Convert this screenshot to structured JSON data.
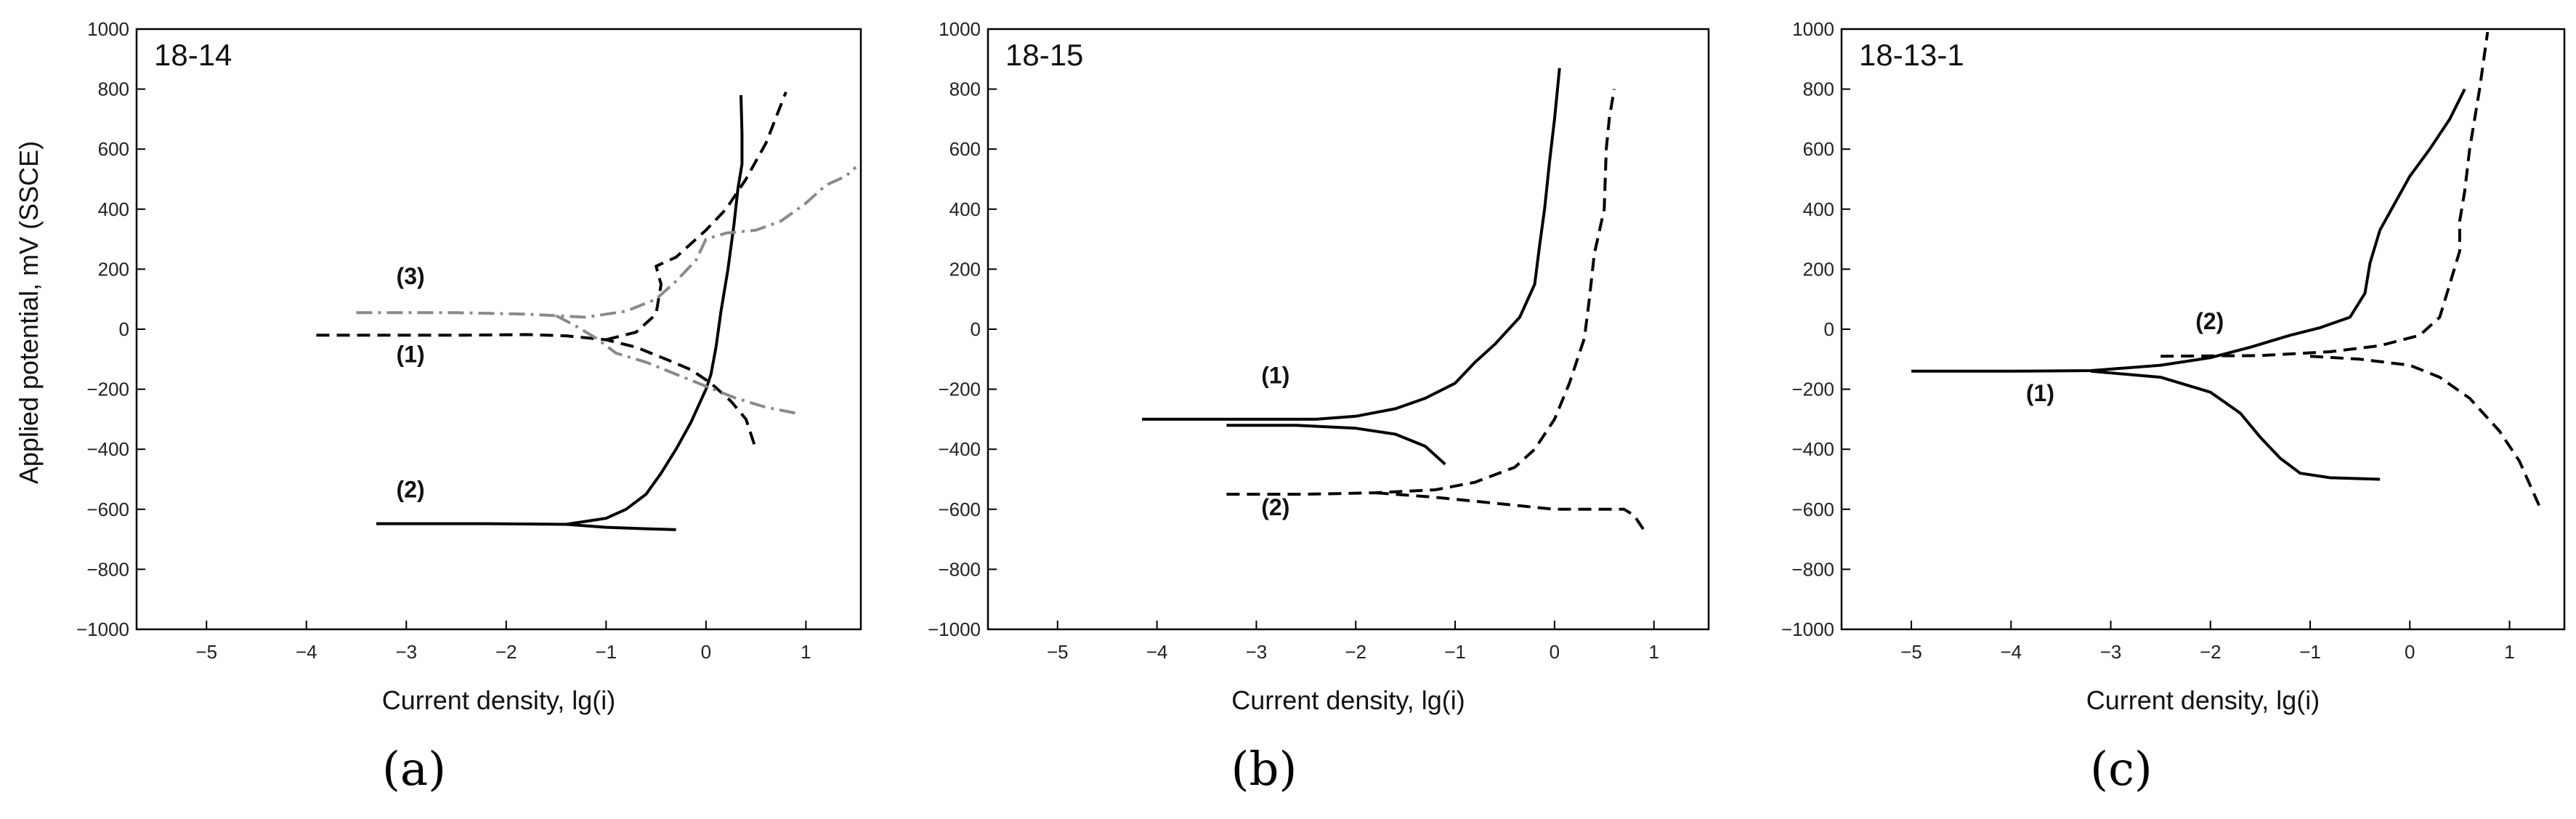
{
  "chart_data": [
    {
      "type": "line",
      "title": "18-14",
      "xlabel": "Current density, lg(i)",
      "ylabel": "Applied potential, mV (SSCE)",
      "xlim": [
        -5.7,
        1.55
      ],
      "ylim": [
        -1000,
        1000
      ],
      "xticks": [
        -5,
        -4,
        -3,
        -2,
        -1,
        0,
        1
      ],
      "yticks": [
        -1000,
        -800,
        -600,
        -400,
        -200,
        0,
        200,
        400,
        600,
        800,
        1000
      ],
      "subcaption": "(a)",
      "labels": [
        {
          "text": "(3)",
          "x": -3.1,
          "y": 150
        },
        {
          "text": "(1)",
          "x": -3.1,
          "y": -110
        },
        {
          "text": "(2)",
          "x": -3.1,
          "y": -560
        }
      ],
      "series": [
        {
          "label": "(1)",
          "style": "dashed",
          "color": "#000000",
          "points": [
            [
              -3.9,
              -20
            ],
            [
              -2.5,
              -20
            ],
            [
              -1.8,
              -18
            ],
            [
              -1.4,
              -22
            ],
            [
              -1.0,
              -35
            ],
            [
              -0.7,
              -60
            ],
            [
              -0.4,
              -100
            ],
            [
              -0.15,
              -135
            ],
            [
              0.05,
              -180
            ],
            [
              0.25,
              -240
            ],
            [
              0.4,
              -300
            ],
            [
              0.5,
              -400
            ]
          ]
        },
        {
          "label": "(1)",
          "style": "dashed",
          "color": "#000000",
          "points": [
            [
              -1.0,
              -35
            ],
            [
              -0.7,
              -10
            ],
            [
              -0.5,
              50
            ],
            [
              -0.45,
              150
            ],
            [
              -0.5,
              210
            ],
            [
              -0.3,
              240
            ],
            [
              0.0,
              330
            ],
            [
              0.2,
              400
            ],
            [
              0.4,
              500
            ],
            [
              0.5,
              560
            ],
            [
              0.6,
              620
            ],
            [
              0.8,
              790
            ]
          ]
        },
        {
          "label": "(2)",
          "style": "solid",
          "color": "#000000",
          "points": [
            [
              -3.3,
              -648
            ],
            [
              -2.2,
              -648
            ],
            [
              -1.4,
              -650
            ],
            [
              -1.0,
              -660
            ],
            [
              -0.6,
              -665
            ],
            [
              -0.3,
              -668
            ]
          ]
        },
        {
          "label": "(2)",
          "style": "solid",
          "color": "#000000",
          "points": [
            [
              -1.4,
              -650
            ],
            [
              -1.0,
              -630
            ],
            [
              -0.8,
              -600
            ],
            [
              -0.6,
              -550
            ],
            [
              -0.45,
              -480
            ],
            [
              -0.3,
              -400
            ],
            [
              -0.15,
              -310
            ],
            [
              0.0,
              -200
            ],
            [
              0.05,
              -150
            ],
            [
              0.1,
              -60
            ],
            [
              0.15,
              60
            ],
            [
              0.22,
              200
            ],
            [
              0.28,
              350
            ],
            [
              0.32,
              470
            ],
            [
              0.36,
              550
            ],
            [
              0.36,
              650
            ],
            [
              0.35,
              780
            ]
          ]
        },
        {
          "label": "(3)",
          "style": "dashdot",
          "color": "#8a8a8a",
          "points": [
            [
              -3.5,
              55
            ],
            [
              -2.5,
              55
            ],
            [
              -1.8,
              50
            ],
            [
              -1.5,
              45
            ],
            [
              -1.2,
              40
            ],
            [
              -0.8,
              60
            ],
            [
              -0.5,
              100
            ],
            [
              -0.3,
              160
            ],
            [
              -0.1,
              230
            ],
            [
              0.0,
              300
            ],
            [
              0.2,
              320
            ],
            [
              0.5,
              330
            ],
            [
              0.75,
              360
            ],
            [
              1.0,
              420
            ],
            [
              1.2,
              480
            ],
            [
              1.4,
              510
            ],
            [
              1.5,
              540
            ]
          ]
        },
        {
          "label": "(3)",
          "style": "dashdot",
          "color": "#8a8a8a",
          "points": [
            [
              -1.5,
              45
            ],
            [
              -1.3,
              10
            ],
            [
              -1.1,
              -30
            ],
            [
              -0.9,
              -80
            ],
            [
              -0.6,
              -110
            ],
            [
              -0.3,
              -150
            ],
            [
              0.0,
              -190
            ],
            [
              0.3,
              -230
            ],
            [
              0.6,
              -260
            ],
            [
              0.9,
              -280
            ]
          ]
        }
      ]
    },
    {
      "type": "line",
      "title": "18-15",
      "xlabel": "Current density, lg(i)",
      "ylabel": "",
      "xlim": [
        -5.7,
        1.55
      ],
      "ylim": [
        -1000,
        1000
      ],
      "xticks": [
        -5,
        -4,
        -3,
        -2,
        -1,
        0,
        1
      ],
      "yticks": [
        -1000,
        -800,
        -600,
        -400,
        -200,
        0,
        200,
        400,
        600,
        800,
        1000
      ],
      "subcaption": "(b)",
      "labels": [
        {
          "text": "(1)",
          "x": -2.95,
          "y": -180
        },
        {
          "text": "(2)",
          "x": -2.95,
          "y": -620
        }
      ],
      "series": [
        {
          "label": "(1)",
          "style": "solid",
          "color": "#000000",
          "points": [
            [
              -4.15,
              -300
            ],
            [
              -3.0,
              -300
            ],
            [
              -2.4,
              -300
            ],
            [
              -2.0,
              -290
            ],
            [
              -1.6,
              -265
            ],
            [
              -1.3,
              -230
            ],
            [
              -1.0,
              -180
            ],
            [
              -0.8,
              -110
            ],
            [
              -0.6,
              -50
            ],
            [
              -0.35,
              40
            ],
            [
              -0.2,
              150
            ],
            [
              -0.15,
              280
            ],
            [
              -0.1,
              400
            ],
            [
              -0.05,
              560
            ],
            [
              0.0,
              700
            ],
            [
              0.05,
              870
            ]
          ]
        },
        {
          "label": "(1)",
          "style": "solid",
          "color": "#000000",
          "points": [
            [
              -3.3,
              -320
            ],
            [
              -2.6,
              -320
            ],
            [
              -2.0,
              -330
            ],
            [
              -1.6,
              -350
            ],
            [
              -1.3,
              -390
            ],
            [
              -1.1,
              -450
            ]
          ]
        },
        {
          "label": "(2)",
          "style": "dashed",
          "color": "#000000",
          "points": [
            [
              -3.3,
              -550
            ],
            [
              -2.5,
              -550
            ],
            [
              -1.8,
              -545
            ],
            [
              -1.2,
              -535
            ],
            [
              -0.8,
              -510
            ],
            [
              -0.4,
              -460
            ],
            [
              -0.2,
              -400
            ],
            [
              0.0,
              -300
            ],
            [
              0.15,
              -180
            ],
            [
              0.3,
              -30
            ],
            [
              0.35,
              100
            ],
            [
              0.4,
              250
            ],
            [
              0.5,
              400
            ],
            [
              0.52,
              600
            ],
            [
              0.55,
              700
            ],
            [
              0.6,
              800
            ]
          ]
        },
        {
          "label": "(2)",
          "style": "dashed",
          "color": "#000000",
          "points": [
            [
              -1.8,
              -545
            ],
            [
              -1.2,
              -560
            ],
            [
              -0.6,
              -580
            ],
            [
              0.0,
              -600
            ],
            [
              0.4,
              -600
            ],
            [
              0.7,
              -600
            ],
            [
              0.8,
              -620
            ],
            [
              0.9,
              -670
            ]
          ]
        }
      ]
    },
    {
      "type": "line",
      "title": "18-13-1",
      "xlabel": "Current density, lg(i)",
      "ylabel": "",
      "xlim": [
        -5.7,
        1.55
      ],
      "ylim": [
        -1000,
        1000
      ],
      "xticks": [
        -5,
        -4,
        -3,
        -2,
        -1,
        0,
        1
      ],
      "yticks": [
        -1000,
        -800,
        -600,
        -400,
        -200,
        0,
        200,
        400,
        600,
        800,
        1000
      ],
      "subcaption": "(c)",
      "labels": [
        {
          "text": "(2)",
          "x": -2.15,
          "y": 0
        },
        {
          "text": "(1)",
          "x": -3.85,
          "y": -240
        }
      ],
      "series": [
        {
          "label": "(1)",
          "style": "solid",
          "color": "#000000",
          "points": [
            [
              -5.0,
              -140
            ],
            [
              -4.0,
              -140
            ],
            [
              -3.2,
              -138
            ],
            [
              -2.5,
              -120
            ],
            [
              -2.0,
              -95
            ],
            [
              -1.6,
              -60
            ],
            [
              -1.2,
              -20
            ],
            [
              -0.9,
              5
            ],
            [
              -0.6,
              40
            ],
            [
              -0.45,
              120
            ],
            [
              -0.4,
              220
            ],
            [
              -0.3,
              330
            ],
            [
              -0.15,
              420
            ],
            [
              0.0,
              510
            ],
            [
              0.2,
              600
            ],
            [
              0.4,
              700
            ],
            [
              0.55,
              800
            ]
          ]
        },
        {
          "label": "(1)",
          "style": "solid",
          "color": "#000000",
          "points": [
            [
              -3.2,
              -140
            ],
            [
              -2.5,
              -160
            ],
            [
              -2.0,
              -210
            ],
            [
              -1.7,
              -280
            ],
            [
              -1.5,
              -360
            ],
            [
              -1.3,
              -430
            ],
            [
              -1.1,
              -480
            ],
            [
              -0.8,
              -495
            ],
            [
              -0.3,
              -500
            ]
          ]
        },
        {
          "label": "(2)",
          "style": "dashed",
          "color": "#000000",
          "points": [
            [
              -2.5,
              -90
            ],
            [
              -1.5,
              -88
            ],
            [
              -0.8,
              -75
            ],
            [
              -0.3,
              -55
            ],
            [
              0.1,
              -20
            ],
            [
              0.3,
              40
            ],
            [
              0.4,
              150
            ],
            [
              0.5,
              260
            ],
            [
              0.5,
              360
            ],
            [
              0.55,
              460
            ],
            [
              0.6,
              600
            ],
            [
              0.7,
              800
            ],
            [
              0.78,
              990
            ]
          ]
        },
        {
          "label": "(2)",
          "style": "dashed",
          "color": "#000000",
          "points": [
            [
              -1.0,
              -90
            ],
            [
              -0.5,
              -100
            ],
            [
              0.0,
              -120
            ],
            [
              0.3,
              -160
            ],
            [
              0.6,
              -230
            ],
            [
              0.9,
              -340
            ],
            [
              1.1,
              -440
            ],
            [
              1.3,
              -590
            ]
          ]
        }
      ]
    }
  ]
}
